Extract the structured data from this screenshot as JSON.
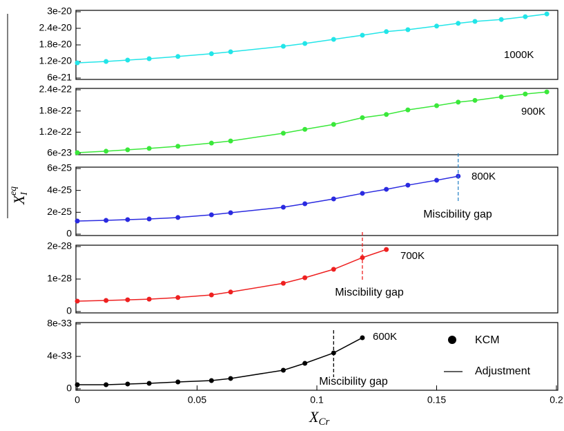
{
  "chart_data": [
    {
      "type": "line",
      "x": [
        0,
        0.012,
        0.021,
        0.03,
        0.042,
        0.056,
        0.064,
        0.086,
        0.095,
        0.107,
        0.119,
        0.129,
        0.138,
        0.15,
        0.159,
        0.166,
        0.177,
        0.187,
        0.196
      ],
      "series": [
        {
          "name": "1000K",
          "color": "#22e5e8",
          "values": [
            1.15e-20,
            1.2e-20,
            1.25e-20,
            1.3e-20,
            1.38e-20,
            1.48e-20,
            1.55e-20,
            1.75e-20,
            1.85e-20,
            2e-20,
            2.15e-20,
            2.28e-20,
            2.35e-20,
            2.48e-20,
            2.58e-20,
            2.65e-20,
            2.72e-20,
            2.82e-20,
            2.92e-20
          ]
        }
      ],
      "ylim": [
        6e-21,
        3e-20
      ],
      "yticks": [
        6e-21,
        1.2e-20,
        1.8e-20,
        2.4e-20,
        3e-20
      ]
    },
    {
      "type": "line",
      "x": [
        0,
        0.012,
        0.021,
        0.03,
        0.042,
        0.056,
        0.064,
        0.086,
        0.095,
        0.107,
        0.119,
        0.129,
        0.138,
        0.15,
        0.159,
        0.166,
        0.177,
        0.187,
        0.196
      ],
      "series": [
        {
          "name": "900K",
          "color": "#3ae83a",
          "values": [
            6.2e-23,
            6.6e-23,
            7e-23,
            7.4e-23,
            8e-23,
            8.9e-23,
            9.5e-23,
            1.17e-22,
            1.28e-22,
            1.42e-22,
            1.61e-22,
            1.7e-22,
            1.83e-22,
            1.95e-22,
            2.05e-22,
            2.1e-22,
            2.2e-22,
            2.28e-22,
            2.34e-22
          ]
        }
      ],
      "ylim": [
        6e-23,
        2.4e-22
      ],
      "yticks": [
        6e-23,
        1.2e-22,
        1.8e-22,
        2.4e-22
      ]
    },
    {
      "type": "line",
      "ylabel": {
        "main": "X",
        "sub": "I",
        "sup": "eq"
      },
      "x": [
        0,
        0.012,
        0.021,
        0.03,
        0.042,
        0.056,
        0.064,
        0.086,
        0.095,
        0.107,
        0.119,
        0.129,
        0.138,
        0.15,
        0.159
      ],
      "series": [
        {
          "name": "800K",
          "color": "#2a2ae0",
          "values": [
            1.2e-25,
            1.26e-25,
            1.33e-25,
            1.39e-25,
            1.52e-25,
            1.77e-25,
            1.96e-25,
            2.46e-25,
            2.78e-25,
            3.22e-25,
            3.73e-25,
            4.1e-25,
            4.48e-25,
            4.93e-25,
            5.3e-25
          ]
        }
      ],
      "label_color": "#2f86c8",
      "miscibility_gap": {
        "label": "Miscibility gap",
        "x": 0.159
      },
      "ylim": [
        0,
        6e-25
      ],
      "yticks": [
        0,
        2e-25,
        4e-25,
        6e-25
      ]
    },
    {
      "type": "line",
      "x": [
        0,
        0.012,
        0.021,
        0.03,
        0.042,
        0.056,
        0.064,
        0.086,
        0.095,
        0.107,
        0.119,
        0.129
      ],
      "series": [
        {
          "name": "700K",
          "color": "#ee2020",
          "values": [
            3.2e-29,
            3.4e-29,
            3.6e-29,
            3.8e-29,
            4.3e-29,
            5.1e-29,
            6e-29,
            8.7e-29,
            1.04e-28,
            1.3e-28,
            1.66e-28,
            1.91e-28
          ]
        }
      ],
      "label_color": "#ee2020",
      "miscibility_gap": {
        "label": "Miscibility gap",
        "x": 0.119
      },
      "ylim": [
        0,
        2e-28
      ],
      "yticks": [
        0,
        1e-28,
        2e-28
      ]
    },
    {
      "type": "line",
      "x": [
        0,
        0.012,
        0.021,
        0.03,
        0.042,
        0.056,
        0.064,
        0.086,
        0.095,
        0.107,
        0.119
      ],
      "series": [
        {
          "name": "600K",
          "color": "#000000",
          "values": [
            5.1e-34,
            5.1e-34,
            6e-34,
            6.8e-34,
            8.5e-34,
            1.02e-33,
            1.28e-33,
            2.3e-33,
            3.15e-33,
            4.43e-33,
            6.3e-33
          ]
        }
      ],
      "label_color": "#000000",
      "miscibility_gap": {
        "label": "Miscibility gap",
        "x": 0.107
      },
      "ylim": [
        0,
        8e-33
      ],
      "yticks": [
        0,
        4e-33,
        8e-33
      ],
      "legend": [
        "KCM",
        "Adjustment"
      ],
      "xlabel": {
        "main": "X",
        "sub": "Cr"
      },
      "xlim": [
        0,
        0.2
      ],
      "xticks": [
        0,
        0.05,
        0.1,
        0.15,
        0.2
      ]
    }
  ]
}
